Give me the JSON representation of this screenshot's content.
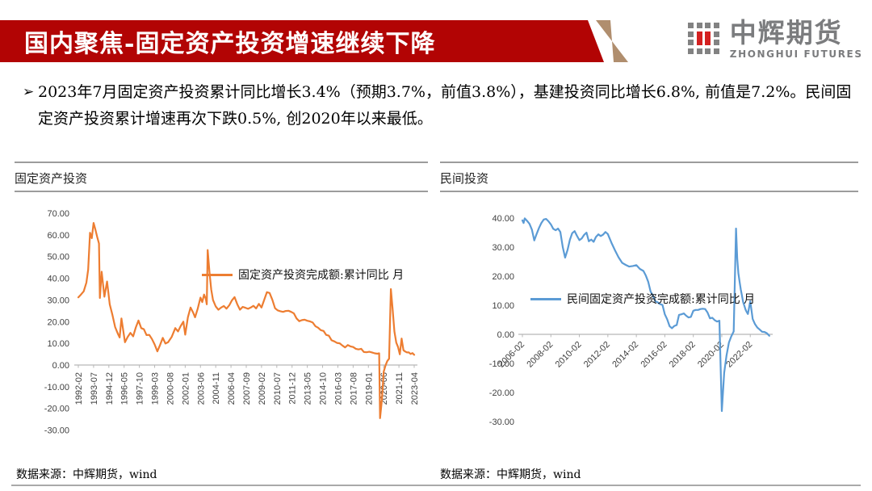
{
  "header": {
    "title": "国内聚焦-固定资产投资增速继续下降",
    "banner_color": "#B20404",
    "accent_color": "#B08E6E",
    "logo": {
      "name_cn": "中辉期货",
      "name_en": "ZHONGHUI FUTURES",
      "mark_gray": "#828282",
      "mark_red": "#D42020",
      "text_color": "#7b7c7e"
    }
  },
  "summary": {
    "bullet_char": "➢",
    "text": "2023年7月固定资产投资累计同比增长3.4%（预期3.7%，前值3.8%），基建投资同比增长6.8%, 前值是7.2%。民间固定资产投资累计增速再次下跌0.5%, 创2020年以来最低。"
  },
  "chart_data": [
    {
      "type": "line",
      "title": "固定资产投资",
      "legend": "固定资产投资完成额:累计同比 月",
      "source": "数据来源：中辉期货，wind",
      "color": "#ED7D31",
      "ylim": [
        -30,
        70
      ],
      "y_ticks": [
        70,
        60,
        50,
        40,
        30,
        20,
        10,
        0,
        -10,
        -20,
        -30
      ],
      "x_tick_labels": [
        "1992-02",
        "1993-07",
        "1994-12",
        "1996-05",
        "1997-10",
        "1999-03",
        "2000-08",
        "2002-01",
        "2003-06",
        "2004-11",
        "2006-04",
        "2007-09",
        "2009-02",
        "2010-07",
        "2011-12",
        "2013-05",
        "2014-10",
        "2016-03",
        "2017-08",
        "2019-01",
        "2020-06",
        "2021-11",
        "2023-04"
      ],
      "x_tick_step_months": 17,
      "x_total_months": 374,
      "series_months": [
        0,
        3,
        6,
        9,
        11,
        13,
        15,
        17,
        19,
        21,
        23,
        24,
        26,
        29,
        32,
        35,
        38,
        41,
        44,
        46,
        48,
        52,
        55,
        58,
        61,
        64,
        67,
        70,
        73,
        76,
        79,
        82,
        85,
        88,
        91,
        94,
        97,
        100,
        104,
        108,
        111,
        114,
        117,
        119,
        122,
        125,
        128,
        130,
        133,
        136,
        138,
        140,
        142,
        143,
        144,
        146,
        148,
        150,
        153,
        156,
        159,
        162,
        165,
        168,
        171,
        174,
        177,
        180,
        183,
        186,
        189,
        192,
        195,
        198,
        201,
        204,
        207,
        210,
        213,
        216,
        219,
        222,
        225,
        228,
        231,
        234,
        237,
        240,
        243,
        246,
        249,
        252,
        255,
        258,
        261,
        264,
        267,
        270,
        273,
        276,
        279,
        282,
        285,
        288,
        291,
        294,
        297,
        300,
        303,
        306,
        309,
        312,
        315,
        318,
        321,
        324,
        327,
        330,
        333,
        335,
        336,
        338,
        340,
        342,
        344,
        346,
        348,
        350,
        352,
        354,
        356,
        358,
        360,
        362,
        364,
        366,
        368,
        370,
        372,
        373,
        374
      ],
      "series_values": [
        31.2,
        32.5,
        34,
        38,
        44,
        61,
        58.5,
        65.5,
        62.5,
        59,
        56,
        30.9,
        43,
        31.5,
        38.5,
        28,
        23,
        17.5,
        14.5,
        12.7,
        21.5,
        10.5,
        13,
        14.8,
        13.2,
        17.3,
        20.5,
        17,
        16.5,
        13.8,
        13.9,
        12,
        9.5,
        6.3,
        9.2,
        12.5,
        9.9,
        10.5,
        13,
        17,
        15.5,
        18,
        20,
        14,
        22,
        26.5,
        24,
        22,
        26,
        31.1,
        29,
        32.5,
        30.5,
        28,
        53,
        43,
        34.8,
        30,
        27,
        25.5,
        26.5,
        27.2,
        26,
        27.5,
        29.8,
        31.3,
        28,
        25.5,
        26.8,
        26.4,
        25.9,
        26.5,
        27.3,
        26.1,
        28.2,
        26.5,
        30,
        33.6,
        33.2,
        30.1,
        26.2,
        25.2,
        24.8,
        24.5,
        24.9,
        25,
        24.5,
        23.8,
        21.5,
        20.2,
        20.7,
        20.9,
        20.4,
        20.1,
        19.6,
        17.9,
        17.2,
        16.1,
        15.7,
        13.9,
        13.5,
        11.4,
        10.9,
        10.2,
        10,
        9,
        8.1,
        9.2,
        8.6,
        8.3,
        7.5,
        7.2,
        7.5,
        6,
        5.9,
        6.1,
        5.8,
        5.4,
        5.2,
        5.4,
        -24.5,
        -16.1,
        -3.1,
        -0.3,
        1.8,
        2.9,
        35,
        25.6,
        15.4,
        10.3,
        8.3,
        4.9,
        12.2,
        6.8,
        6.2,
        5.8,
        5.8,
        5.1,
        5.5,
        5.1,
        4.7
      ]
    },
    {
      "type": "line",
      "title": "民间投资",
      "legend": "民间固定资产投资完成额:累计同比  月",
      "source": "数据来源：中辉期货，wind",
      "color": "#5B9BD5",
      "ylim": [
        -30,
        40
      ],
      "y_ticks": [
        40,
        30,
        20,
        10,
        0,
        -10,
        -20,
        -30
      ],
      "x_tick_labels": [
        "2006-02",
        "2008-02",
        "2010-02",
        "2012-02",
        "2014-02",
        "2016-02",
        "2018-02",
        "2020-02",
        "2022-02"
      ],
      "x_tick_step_months": 24,
      "x_total_months": 209,
      "series_months": [
        0,
        1,
        2,
        4,
        6,
        8,
        10,
        12,
        14,
        16,
        18,
        20,
        22,
        24,
        26,
        28,
        30,
        32,
        34,
        36,
        38,
        40,
        42,
        44,
        46,
        48,
        50,
        52,
        54,
        56,
        58,
        60,
        62,
        64,
        66,
        68,
        70,
        72,
        75,
        78,
        81,
        84,
        87,
        90,
        93,
        96,
        99,
        102,
        104,
        106,
        108,
        110,
        112,
        114,
        116,
        118,
        120,
        122,
        124,
        126,
        128,
        130,
        132,
        134,
        136,
        138,
        140,
        142,
        144,
        146,
        148,
        150,
        152,
        154,
        156,
        158,
        160,
        162,
        164,
        166,
        168,
        170,
        172,
        174,
        176,
        178,
        180,
        181,
        182,
        183,
        184,
        185,
        186,
        187,
        188,
        189,
        190,
        192,
        193,
        194,
        196,
        198,
        200,
        202,
        204,
        206,
        208
      ],
      "series_values": [
        39.2,
        38.3,
        39.9,
        39.0,
        38.0,
        36.0,
        32.3,
        34.5,
        36.6,
        38.3,
        39.5,
        39.7,
        38.9,
        37.8,
        36.3,
        35.8,
        36.4,
        35.2,
        30.0,
        26.4,
        29.0,
        32.5,
        34.8,
        35.5,
        33.9,
        32.4,
        33.0,
        34.2,
        35.0,
        32.0,
        32.6,
        31.8,
        33.5,
        34.4,
        33.8,
        34.3,
        35.2,
        34.5,
        31.5,
        28.9,
        26.5,
        24.6,
        23.9,
        23.3,
        23.5,
        23.8,
        22.5,
        21.8,
        20.2,
        18.1,
        14.7,
        13.3,
        11.4,
        11.0,
        10.4,
        10.1,
        6.9,
        5.2,
        2.8,
        2.1,
        2.9,
        3.2,
        6.7,
        6.9,
        7.2,
        6.4,
        5.8,
        6.0,
        8.1,
        8.4,
        8.4,
        8.7,
        8.8,
        8.7,
        7.5,
        5.5,
        5.7,
        4.9,
        4.4,
        4.7,
        -26.4,
        -13.3,
        -7.3,
        -2.8,
        -0.7,
        1.0,
        36.4,
        26.0,
        21.0,
        18.1,
        15.4,
        13.4,
        11.1,
        9.8,
        8.5,
        7.7,
        7.0,
        11.4,
        8.4,
        5.3,
        3.5,
        2.3,
        1.6,
        0.9,
        0.8,
        0.4,
        -0.5
      ]
    }
  ]
}
